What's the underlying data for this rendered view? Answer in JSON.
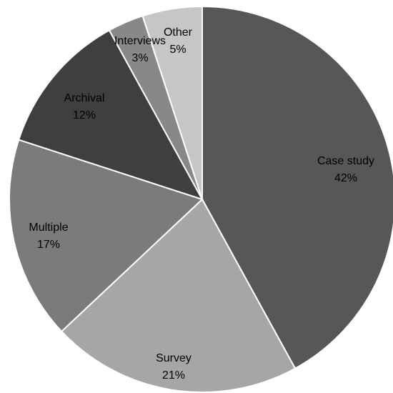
{
  "chart_data": {
    "type": "pie",
    "title": "",
    "slices": [
      {
        "label": "Case study",
        "value": 42,
        "value_text": "42%",
        "color": "#575757",
        "label_color": "#000000"
      },
      {
        "label": "Survey",
        "value": 21,
        "value_text": "21%",
        "color": "#a6a6a6",
        "label_color": "#000000"
      },
      {
        "label": "Multiple",
        "value": 17,
        "value_text": "17%",
        "color": "#7b7b7b",
        "label_color": "#000000"
      },
      {
        "label": "Archival",
        "value": 12,
        "value_text": "12%",
        "color": "#3f3f3f",
        "label_color": "#000000"
      },
      {
        "label": "Interviews",
        "value": 3,
        "value_text": "3%",
        "color": "#888888",
        "label_color": "#000000"
      },
      {
        "label": "Other",
        "value": 5,
        "value_text": "5%",
        "color": "#c6c6c6",
        "label_color": "#000000"
      }
    ],
    "legend": false
  }
}
